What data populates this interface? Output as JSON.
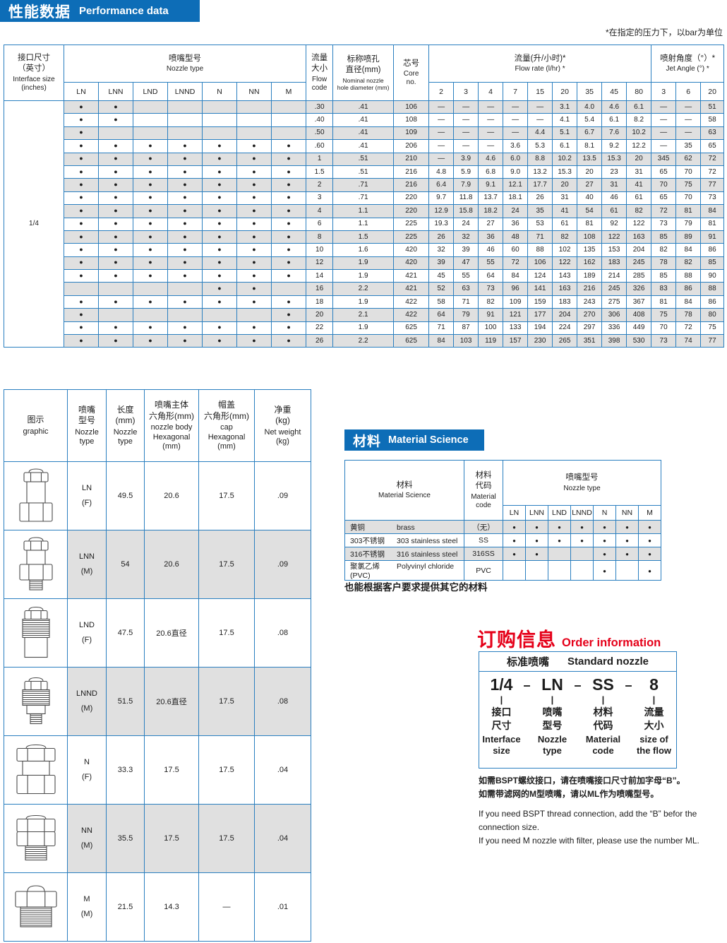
{
  "colors": {
    "badge_blue": "#0d6db7",
    "border_blue": "#2a7fc0",
    "row_gray": "#e0e0e0",
    "accent_red": "#e50019"
  },
  "symbols": {
    "dot": "●",
    "dash": "—",
    "bar": "|"
  },
  "performance": {
    "badge": {
      "zh": "性能数据",
      "en": "Performance data"
    },
    "pressure_note": "*在指定的压力下，以bar为单位",
    "header": {
      "interface": {
        "zh": "接口尺寸\n（英寸）",
        "en": "Interface size\n(inches)"
      },
      "nozzle_type": {
        "zh": "喷嘴型号",
        "en": "Nozzle type"
      },
      "flow_code": {
        "zh": "流量\n大小",
        "en": "Flow\ncode"
      },
      "diameter": {
        "zh": "标称喷孔\n直径(mm)",
        "en": "Nominal nozzle\nhole diameter (mm)"
      },
      "core": {
        "zh": "芯号",
        "en": "Core\nno."
      },
      "flow_rate": {
        "zh": "流量(升/小时)*",
        "en": "Flow rate (l/hr) *"
      },
      "jet_angle": {
        "zh": "喷射角度（°）*",
        "en": "Jet Angle (°) *"
      }
    },
    "nozzle_types": [
      "LN",
      "LNN",
      "LND",
      "LNND",
      "N",
      "NN",
      "M"
    ],
    "flow_pressures": [
      "2",
      "3",
      "4",
      "7",
      "15",
      "20",
      "35",
      "45",
      "80"
    ],
    "angle_pressures": [
      "3",
      "6",
      "20"
    ],
    "interface_size": "1/4",
    "rows": [
      {
        "dots": [
          1,
          1,
          0,
          0,
          0,
          0,
          0
        ],
        "flow_code": ".30",
        "diameter": ".41",
        "core": "106",
        "flow": [
          "—",
          "—",
          "—",
          "—",
          "—",
          "3.1",
          "4.0",
          "4.6",
          "6.1"
        ],
        "angle": [
          "—",
          "—",
          "51"
        ]
      },
      {
        "dots": [
          1,
          1,
          0,
          0,
          0,
          0,
          0
        ],
        "flow_code": ".40",
        "diameter": ".41",
        "core": "108",
        "flow": [
          "—",
          "—",
          "—",
          "—",
          "—",
          "4.1",
          "5.4",
          "6.1",
          "8.2"
        ],
        "angle": [
          "—",
          "—",
          "58"
        ]
      },
      {
        "dots": [
          1,
          0,
          0,
          0,
          0,
          0,
          0
        ],
        "flow_code": ".50",
        "diameter": ".41",
        "core": "109",
        "flow": [
          "—",
          "—",
          "—",
          "—",
          "4.4",
          "5.1",
          "6.7",
          "7.6",
          "10.2"
        ],
        "angle": [
          "—",
          "—",
          "63"
        ]
      },
      {
        "dots": [
          1,
          1,
          1,
          1,
          1,
          1,
          1
        ],
        "flow_code": ".60",
        "diameter": ".41",
        "core": "206",
        "flow": [
          "—",
          "—",
          "—",
          "3.6",
          "5.3",
          "6.1",
          "8.1",
          "9.2",
          "12.2"
        ],
        "angle": [
          "—",
          "35",
          "65"
        ]
      },
      {
        "dots": [
          1,
          1,
          1,
          1,
          1,
          1,
          1
        ],
        "flow_code": "1",
        "diameter": ".51",
        "core": "210",
        "flow": [
          "—",
          "3.9",
          "4.6",
          "6.0",
          "8.8",
          "10.2",
          "13.5",
          "15.3",
          "20"
        ],
        "angle": [
          "345",
          "62",
          "72"
        ]
      },
      {
        "dots": [
          1,
          1,
          1,
          1,
          1,
          1,
          1
        ],
        "flow_code": "1.5",
        "diameter": ".51",
        "core": "216",
        "flow": [
          "4.8",
          "5.9",
          "6.8",
          "9.0",
          "13.2",
          "15.3",
          "20",
          "23",
          "31"
        ],
        "angle": [
          "65",
          "70",
          "72"
        ]
      },
      {
        "dots": [
          1,
          1,
          1,
          1,
          1,
          1,
          1
        ],
        "flow_code": "2",
        "diameter": ".71",
        "core": "216",
        "flow": [
          "6.4",
          "7.9",
          "9.1",
          "12.1",
          "17.7",
          "20",
          "27",
          "31",
          "41"
        ],
        "angle": [
          "70",
          "75",
          "77"
        ]
      },
      {
        "dots": [
          1,
          1,
          1,
          1,
          1,
          1,
          1
        ],
        "flow_code": "3",
        "diameter": ".71",
        "core": "220",
        "flow": [
          "9.7",
          "11.8",
          "13.7",
          "18.1",
          "26",
          "31",
          "40",
          "46",
          "61"
        ],
        "angle": [
          "65",
          "70",
          "73"
        ]
      },
      {
        "dots": [
          1,
          1,
          1,
          1,
          1,
          1,
          1
        ],
        "flow_code": "4",
        "diameter": "1.1",
        "core": "220",
        "flow": [
          "12.9",
          "15.8",
          "18.2",
          "24",
          "35",
          "41",
          "54",
          "61",
          "82"
        ],
        "angle": [
          "72",
          "81",
          "84"
        ]
      },
      {
        "dots": [
          1,
          1,
          1,
          1,
          1,
          1,
          1
        ],
        "flow_code": "6",
        "diameter": "1.1",
        "core": "225",
        "flow": [
          "19.3",
          "24",
          "27",
          "36",
          "53",
          "61",
          "81",
          "92",
          "122"
        ],
        "angle": [
          "73",
          "79",
          "81"
        ]
      },
      {
        "dots": [
          1,
          1,
          1,
          1,
          1,
          1,
          1
        ],
        "flow_code": "8",
        "diameter": "1.5",
        "core": "225",
        "flow": [
          "26",
          "32",
          "36",
          "48",
          "71",
          "82",
          "108",
          "122",
          "163"
        ],
        "angle": [
          "85",
          "89",
          "91"
        ]
      },
      {
        "dots": [
          1,
          1,
          1,
          1,
          1,
          1,
          1
        ],
        "flow_code": "10",
        "diameter": "1.6",
        "core": "420",
        "flow": [
          "32",
          "39",
          "46",
          "60",
          "88",
          "102",
          "135",
          "153",
          "204"
        ],
        "angle": [
          "82",
          "84",
          "86"
        ]
      },
      {
        "dots": [
          1,
          1,
          1,
          1,
          1,
          1,
          1
        ],
        "flow_code": "12",
        "diameter": "1.9",
        "core": "420",
        "flow": [
          "39",
          "47",
          "55",
          "72",
          "106",
          "122",
          "162",
          "183",
          "245"
        ],
        "angle": [
          "78",
          "82",
          "85"
        ]
      },
      {
        "dots": [
          1,
          1,
          1,
          1,
          1,
          1,
          1
        ],
        "flow_code": "14",
        "diameter": "1.9",
        "core": "421",
        "flow": [
          "45",
          "55",
          "64",
          "84",
          "124",
          "143",
          "189",
          "214",
          "285"
        ],
        "angle": [
          "85",
          "88",
          "90"
        ]
      },
      {
        "dots": [
          0,
          0,
          0,
          0,
          1,
          1,
          0
        ],
        "flow_code": "16",
        "diameter": "2.2",
        "core": "421",
        "flow": [
          "52",
          "63",
          "73",
          "96",
          "141",
          "163",
          "216",
          "245",
          "326"
        ],
        "angle": [
          "83",
          "86",
          "88"
        ]
      },
      {
        "dots": [
          1,
          1,
          1,
          1,
          1,
          1,
          1
        ],
        "flow_code": "18",
        "diameter": "1.9",
        "core": "422",
        "flow": [
          "58",
          "71",
          "82",
          "109",
          "159",
          "183",
          "243",
          "275",
          "367"
        ],
        "angle": [
          "81",
          "84",
          "86"
        ]
      },
      {
        "dots": [
          1,
          0,
          0,
          0,
          0,
          0,
          1
        ],
        "flow_code": "20",
        "diameter": "2.1",
        "core": "422",
        "flow": [
          "64",
          "79",
          "91",
          "121",
          "177",
          "204",
          "270",
          "306",
          "408"
        ],
        "angle": [
          "75",
          "78",
          "80"
        ]
      },
      {
        "dots": [
          1,
          1,
          1,
          1,
          1,
          1,
          1
        ],
        "flow_code": "22",
        "diameter": "1.9",
        "core": "625",
        "flow": [
          "71",
          "87",
          "100",
          "133",
          "194",
          "224",
          "297",
          "336",
          "449"
        ],
        "angle": [
          "70",
          "72",
          "75"
        ]
      },
      {
        "dots": [
          1,
          1,
          1,
          1,
          1,
          1,
          1
        ],
        "flow_code": "26",
        "diameter": "2.2",
        "core": "625",
        "flow": [
          "84",
          "103",
          "119",
          "157",
          "230",
          "265",
          "351",
          "398",
          "530"
        ],
        "angle": [
          "73",
          "74",
          "77"
        ]
      }
    ]
  },
  "dimensions": {
    "header": {
      "graphic": {
        "zh": "图示",
        "en": "graphic"
      },
      "type": {
        "zh": "喷嘴\n型号",
        "en": "Nozzle\ntype"
      },
      "length": {
        "zh": "长度\n(mm)",
        "en": "Nozzle\ntype"
      },
      "body_hex": {
        "zh": "喷嘴主体\n六角形(mm)",
        "en": "nozzle body\nHexagonal\n(mm)"
      },
      "cap_hex": {
        "zh": "帽盖\n六角形(mm)",
        "en": "cap\nHexagonal\n(mm)"
      },
      "weight": {
        "zh": "净重\n(kg)",
        "en": "Net weight\n(kg)"
      }
    },
    "rows": [
      {
        "type": "LN",
        "gender": "(F)",
        "length": "49.5",
        "body_hex": "20.6",
        "cap_hex": "17.5",
        "weight": ".09"
      },
      {
        "type": "LNN",
        "gender": "(M)",
        "length": "54",
        "body_hex": "20.6",
        "cap_hex": "17.5",
        "weight": ".09"
      },
      {
        "type": "LND",
        "gender": "(F)",
        "length": "47.5",
        "body_hex": "20.6直径",
        "cap_hex": "17.5",
        "weight": ".08"
      },
      {
        "type": "LNND",
        "gender": "(M)",
        "length": "51.5",
        "body_hex": "20.6直径",
        "cap_hex": "17.5",
        "weight": ".08"
      },
      {
        "type": "N",
        "gender": "(F)",
        "length": "33.3",
        "body_hex": "17.5",
        "cap_hex": "17.5",
        "weight": ".04"
      },
      {
        "type": "NN",
        "gender": "(M)",
        "length": "35.5",
        "body_hex": "17.5",
        "cap_hex": "17.5",
        "weight": ".04"
      },
      {
        "type": "M",
        "gender": "(M)",
        "length": "21.5",
        "body_hex": "14.3",
        "cap_hex": "—",
        "weight": ".01"
      }
    ]
  },
  "materials": {
    "badge": {
      "zh": "材料",
      "en": "Material Science"
    },
    "header": {
      "material": {
        "zh": "材料",
        "en": "Material Science"
      },
      "code": {
        "zh": "材料\n代码",
        "en": "Material\ncode"
      },
      "nozzle_type": {
        "zh": "喷嘴型号",
        "en": "Nozzle type"
      }
    },
    "nozzle_types": [
      "LN",
      "LNN",
      "LND",
      "LNND",
      "N",
      "NN",
      "M"
    ],
    "rows": [
      {
        "zh": "黄铜",
        "en": "brass",
        "code": "（无）",
        "dots": [
          1,
          1,
          1,
          1,
          1,
          1,
          1
        ]
      },
      {
        "zh": "303不锈钢",
        "en": "303 stainless steel",
        "code": "SS",
        "dots": [
          1,
          1,
          1,
          1,
          1,
          1,
          1
        ]
      },
      {
        "zh": "316不锈钢",
        "en": "316 stainless steel",
        "code": "316SS",
        "dots": [
          1,
          1,
          0,
          0,
          1,
          1,
          1
        ]
      },
      {
        "zh": "聚氯乙烯",
        "en": "Polyvinyl chloride (PVC)",
        "code": "PVC",
        "dots": [
          0,
          0,
          0,
          0,
          1,
          0,
          1
        ]
      }
    ],
    "note": "也能根据客户要求提供其它的材料"
  },
  "order": {
    "title": {
      "zh": "订购信息",
      "en": "Order information"
    },
    "box_header": {
      "zh": "标准喷嘴",
      "en": "Standard nozzle"
    },
    "separator": "–",
    "parts": [
      {
        "code": "1/4",
        "zh": "接口\n尺寸",
        "en": "Interface\nsize"
      },
      {
        "code": "LN",
        "zh": "喷嘴\n型号",
        "en": "Nozzle\ntype"
      },
      {
        "code": "SS",
        "zh": "材料\n代码",
        "en": "Material\ncode"
      },
      {
        "code": "8",
        "zh": "流量\n大小",
        "en": "size of\nthe flow"
      }
    ],
    "notes_zh": [
      "如需BSPT螺纹接口，请在喷嘴接口尺寸前加字母“B”。",
      "如需带滤网的M型喷嘴，请以ML作为喷嘴型号。"
    ],
    "notes_en": [
      "If you need BSPT thread connection, add the “B” befor the connection size.",
      "If you need M nozzle with filter, please use the number ML."
    ]
  }
}
